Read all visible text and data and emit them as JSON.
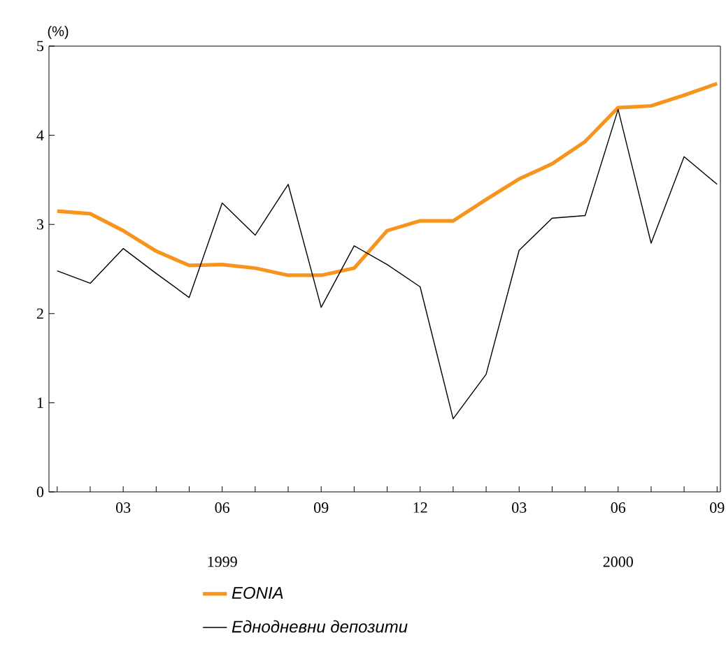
{
  "chart_data": {
    "type": "line",
    "ylabel": "(%)",
    "categories": [
      null,
      null,
      "03",
      null,
      null,
      "06",
      null,
      null,
      "09",
      null,
      null,
      "12",
      null,
      null,
      "03",
      null,
      null,
      "06",
      null,
      null,
      "09"
    ],
    "annotations": [
      "1999",
      "2000"
    ],
    "series": [
      {
        "name": "EONIA",
        "color": "#f7941d",
        "values": [
          3.15,
          3.12,
          2.93,
          2.7,
          2.54,
          2.55,
          2.51,
          2.43,
          2.43,
          2.51,
          2.93,
          3.04,
          3.04,
          3.28,
          3.51,
          3.68,
          3.93,
          4.31,
          4.33,
          4.45,
          4.58
        ]
      },
      {
        "name": "Еднодневни депозити",
        "color": "#000000",
        "values": [
          2.48,
          2.34,
          2.73,
          2.45,
          2.18,
          3.24,
          2.88,
          3.45,
          2.07,
          2.76,
          2.55,
          2.3,
          0.82,
          1.32,
          2.71,
          3.07,
          3.1,
          4.29,
          2.79,
          3.76,
          3.45
        ]
      }
    ],
    "ylim": [
      0,
      5
    ],
    "yticks": [
      0,
      1,
      2,
      3,
      4,
      5
    ],
    "grid": false,
    "legend": "bottom",
    "marker": "none",
    "line_style": "solid"
  }
}
